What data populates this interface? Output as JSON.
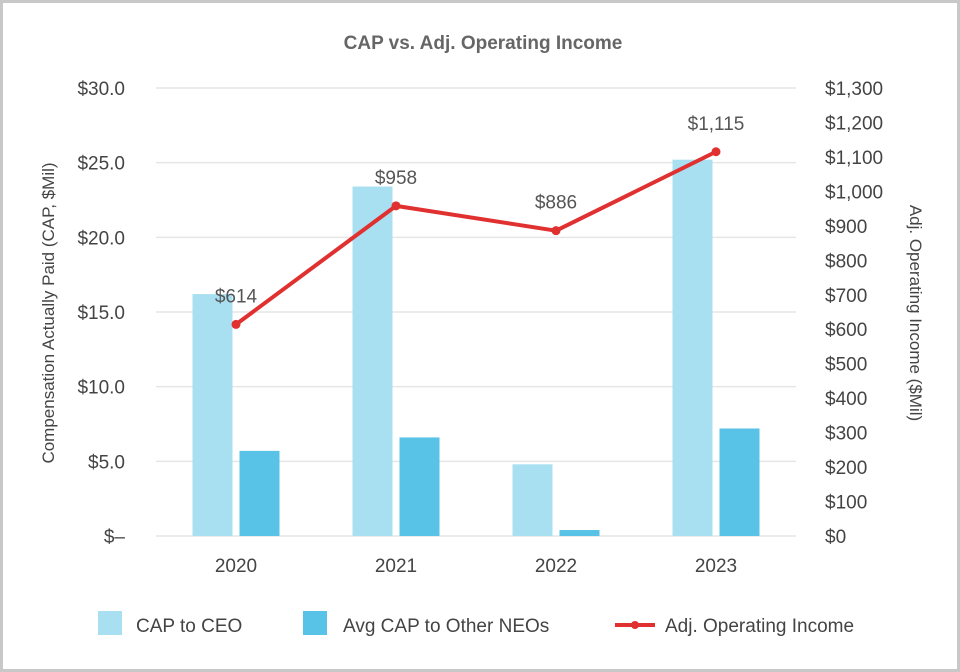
{
  "chart_data": {
    "type": "bar",
    "title": "CAP vs. Adj. Operating Income",
    "categories": [
      "2020",
      "2021",
      "2022",
      "2023"
    ],
    "series": [
      {
        "name": "CAP to CEO",
        "type": "bar",
        "axis": "left",
        "color": "#a8e0f2",
        "values": [
          16.2,
          23.4,
          4.8,
          25.2
        ]
      },
      {
        "name": "Avg CAP to Other NEOs",
        "type": "bar",
        "axis": "left",
        "color": "#58c3e6",
        "values": [
          5.7,
          6.6,
          0.4,
          7.2
        ]
      },
      {
        "name": "Adj. Operating Income",
        "type": "line",
        "axis": "right",
        "color": "#e03030",
        "values": [
          614,
          958,
          886,
          1115
        ],
        "data_labels": [
          "$614",
          "$958",
          "$886",
          "$1,115"
        ]
      }
    ],
    "y_left": {
      "label": "Compensation Actually Paid (CAP, $Mil)",
      "min": 0,
      "max": 30,
      "ticks": [
        0,
        5,
        10,
        15,
        20,
        25,
        30
      ],
      "tick_labels": [
        "$–",
        "$5.0",
        "$10.0",
        "$15.0",
        "$20.0",
        "$25.0",
        "$30.0"
      ]
    },
    "y_right": {
      "label": "Adj. Operating Income ($Mil)",
      "min": 0,
      "max": 1300,
      "ticks": [
        0,
        100,
        200,
        300,
        400,
        500,
        600,
        700,
        800,
        900,
        1000,
        1100,
        1200,
        1300
      ],
      "tick_labels": [
        "$0",
        "$100",
        "$200",
        "$300",
        "$400",
        "$500",
        "$600",
        "$700",
        "$800",
        "$900",
        "$1,000",
        "$1,100",
        "$1,200",
        "$1,300"
      ]
    },
    "grid": true,
    "legend_position": "bottom"
  }
}
